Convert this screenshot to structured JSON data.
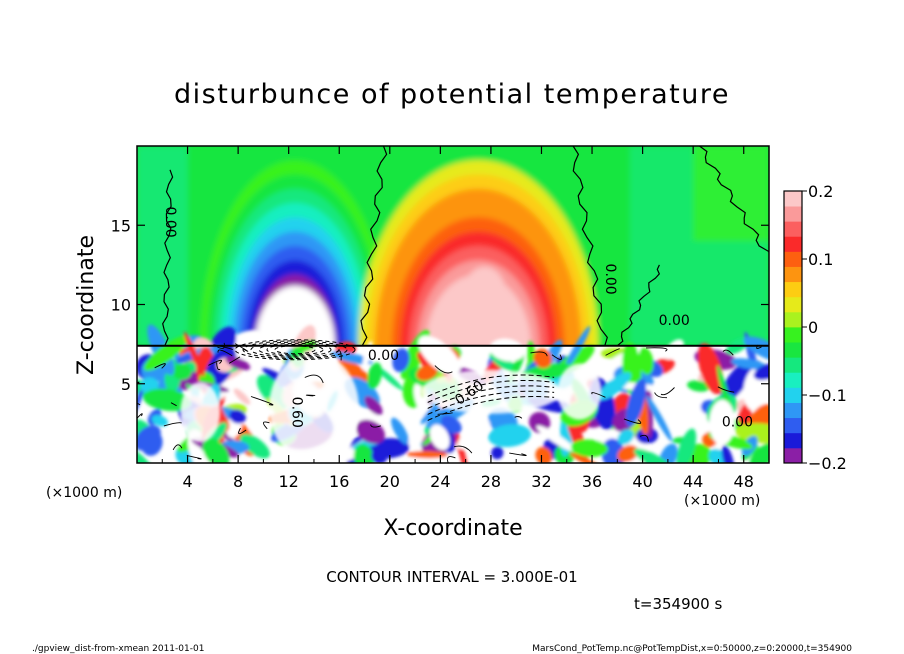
{
  "chart_data": {
    "type": "heatmap",
    "title": "disturbunce of potential temperature",
    "xlabel": "X-coordinate",
    "ylabel": "Z-coordinate",
    "x_unit": "(×1000 m)",
    "z_unit": "(×1000 m)",
    "xlim": [
      0,
      50
    ],
    "ylim": [
      0,
      20
    ],
    "x_ticks": [
      "4",
      "8",
      "12",
      "16",
      "20",
      "24",
      "28",
      "32",
      "36",
      "40",
      "44",
      "48"
    ],
    "y_ticks": [
      "5",
      "10",
      "15"
    ],
    "colorbar": {
      "range": [
        -0.2,
        0.2
      ],
      "tick_labels": [
        "0.2",
        "0.1",
        "0",
        "−0.1",
        "−0.2"
      ],
      "colors": [
        "#8b1fa6",
        "#1a1ad9",
        "#2f5df0",
        "#2f97f5",
        "#22d2ee",
        "#19efc0",
        "#15e87e",
        "#19e640",
        "#37f21f",
        "#aaf21f",
        "#e6ea1a",
        "#fdcd12",
        "#fd9410",
        "#fd6010",
        "#fa2a2a",
        "#fb5f5f",
        "#fa9a9a",
        "#fcc8c8"
      ]
    },
    "features": [
      {
        "kind": "cold_anomaly",
        "x_center": 12.5,
        "z_range": [
          7.4,
          19
        ],
        "min_value": -0.2
      },
      {
        "kind": "warm_anomaly",
        "x_center": 27,
        "z_range": [
          7.4,
          19
        ],
        "max_value": 0.2
      }
    ],
    "contour_labels": [
      {
        "text": "0.00",
        "x": 2.3,
        "z": 15.2
      },
      {
        "text": "0.00",
        "x": 37.1,
        "z": 11.6
      },
      {
        "text": "0.60",
        "x": 12.3,
        "z": 3.2
      },
      {
        "text": "0.00",
        "x": 19.5,
        "z": 6.5
      },
      {
        "text": "0.60",
        "x": 26.5,
        "z": 4.2
      },
      {
        "text": "0.00",
        "x": 42.5,
        "z": 8.7
      },
      {
        "text": "0.00",
        "x": 47.5,
        "z": 2.3
      }
    ]
  },
  "annotations": {
    "contour_interval": "CONTOUR INTERVAL = 3.000E-01",
    "time": "t=354900 s",
    "footer_left": "./gpview_dist-from-xmean   2011-01-01",
    "footer_right": "MarsCond_PotTemp.nc@PotTempDist,x=0:50000,z=0:20000,t=354900"
  }
}
